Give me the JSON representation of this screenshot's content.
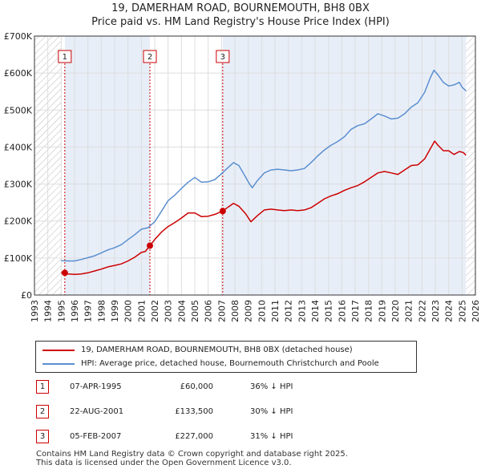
{
  "title": {
    "line1": "19, DAMERHAM ROAD, BOURNEMOUTH, BH8 0BX",
    "line2": "Price paid vs. HM Land Registry's House Price Index (HPI)"
  },
  "colors": {
    "price_line": "#cc0000",
    "hpi_line": "#5b8fd0",
    "grid": "#dddddd",
    "hatch": "#bbbbbb",
    "shade": "#e8eef8"
  },
  "chart_data": {
    "type": "line",
    "xlim": [
      1993,
      2026
    ],
    "ylim": [
      0,
      700000
    ],
    "y_ticks": [
      {
        "value": 0,
        "label": "£0"
      },
      {
        "value": 100000,
        "label": "£100K"
      },
      {
        "value": 200000,
        "label": "£200K"
      },
      {
        "value": 300000,
        "label": "£300K"
      },
      {
        "value": 400000,
        "label": "£400K"
      },
      {
        "value": 500000,
        "label": "£500K"
      },
      {
        "value": 600000,
        "label": "£600K"
      },
      {
        "value": 700000,
        "label": "£700K"
      }
    ],
    "x_ticks": [
      "1993",
      "1994",
      "1995",
      "1996",
      "1997",
      "1998",
      "1999",
      "2000",
      "2001",
      "2002",
      "2003",
      "2004",
      "2005",
      "2006",
      "2007",
      "2008",
      "2009",
      "2010",
      "2011",
      "2012",
      "2013",
      "2014",
      "2015",
      "2016",
      "2017",
      "2018",
      "2019",
      "2020",
      "2021",
      "2022",
      "2023",
      "2024",
      "2025",
      "2026"
    ],
    "data_range": [
      1995.0,
      2025.3
    ],
    "series": [
      {
        "name": "19, DAMERHAM ROAD, BOURNEMOUTH, BH8 0BX (detached house)",
        "color": "#cc0000",
        "points": [
          [
            1995.0,
            60000
          ],
          [
            1995.27,
            60000
          ],
          [
            1995.5,
            57000
          ],
          [
            1996.0,
            56000
          ],
          [
            1996.5,
            57000
          ],
          [
            1997.0,
            60000
          ],
          [
            1997.5,
            65000
          ],
          [
            1998.0,
            70000
          ],
          [
            1998.5,
            76000
          ],
          [
            1999.0,
            80000
          ],
          [
            1999.5,
            84000
          ],
          [
            2000.0,
            92000
          ],
          [
            2000.5,
            102000
          ],
          [
            2001.0,
            115000
          ],
          [
            2001.3,
            118000
          ],
          [
            2001.64,
            133500
          ],
          [
            2002.0,
            150000
          ],
          [
            2002.5,
            170000
          ],
          [
            2003.0,
            185000
          ],
          [
            2003.5,
            196000
          ],
          [
            2004.0,
            208000
          ],
          [
            2004.5,
            222000
          ],
          [
            2005.0,
            222000
          ],
          [
            2005.5,
            212000
          ],
          [
            2006.0,
            213000
          ],
          [
            2006.5,
            218000
          ],
          [
            2007.09,
            227000
          ],
          [
            2007.5,
            238000
          ],
          [
            2007.9,
            248000
          ],
          [
            2008.3,
            240000
          ],
          [
            2008.8,
            220000
          ],
          [
            2009.2,
            198000
          ],
          [
            2009.7,
            215000
          ],
          [
            2010.2,
            230000
          ],
          [
            2010.7,
            232000
          ],
          [
            2011.2,
            230000
          ],
          [
            2011.7,
            228000
          ],
          [
            2012.2,
            230000
          ],
          [
            2012.7,
            228000
          ],
          [
            2013.2,
            230000
          ],
          [
            2013.7,
            236000
          ],
          [
            2014.2,
            248000
          ],
          [
            2014.7,
            260000
          ],
          [
            2015.2,
            268000
          ],
          [
            2015.7,
            274000
          ],
          [
            2016.2,
            283000
          ],
          [
            2016.7,
            290000
          ],
          [
            2017.2,
            296000
          ],
          [
            2017.7,
            306000
          ],
          [
            2018.2,
            318000
          ],
          [
            2018.7,
            330000
          ],
          [
            2019.2,
            334000
          ],
          [
            2019.7,
            330000
          ],
          [
            2020.2,
            326000
          ],
          [
            2020.7,
            338000
          ],
          [
            2021.2,
            350000
          ],
          [
            2021.7,
            352000
          ],
          [
            2022.2,
            368000
          ],
          [
            2022.7,
            400000
          ],
          [
            2022.95,
            416000
          ],
          [
            2023.2,
            405000
          ],
          [
            2023.6,
            390000
          ],
          [
            2024.0,
            390000
          ],
          [
            2024.4,
            380000
          ],
          [
            2024.8,
            388000
          ],
          [
            2025.1,
            385000
          ],
          [
            2025.3,
            378000
          ]
        ]
      },
      {
        "name": "HPI: Average price, detached house, Bournemouth Christchurch and Poole",
        "color": "#5b8fd0",
        "points": [
          [
            1995.0,
            93000
          ],
          [
            1995.5,
            92000
          ],
          [
            1996.0,
            92000
          ],
          [
            1996.5,
            96000
          ],
          [
            1997.0,
            101000
          ],
          [
            1997.5,
            106000
          ],
          [
            1998.0,
            114000
          ],
          [
            1998.5,
            122000
          ],
          [
            1999.0,
            128000
          ],
          [
            1999.5,
            136000
          ],
          [
            2000.0,
            150000
          ],
          [
            2000.5,
            163000
          ],
          [
            2001.0,
            178000
          ],
          [
            2001.5,
            182000
          ],
          [
            2002.0,
            198000
          ],
          [
            2002.5,
            226000
          ],
          [
            2003.0,
            255000
          ],
          [
            2003.5,
            270000
          ],
          [
            2004.0,
            288000
          ],
          [
            2004.5,
            305000
          ],
          [
            2005.0,
            318000
          ],
          [
            2005.5,
            305000
          ],
          [
            2006.0,
            306000
          ],
          [
            2006.5,
            312000
          ],
          [
            2007.0,
            328000
          ],
          [
            2007.5,
            345000
          ],
          [
            2007.9,
            358000
          ],
          [
            2008.3,
            350000
          ],
          [
            2008.7,
            325000
          ],
          [
            2009.1,
            300000
          ],
          [
            2009.3,
            290000
          ],
          [
            2009.7,
            310000
          ],
          [
            2010.2,
            330000
          ],
          [
            2010.7,
            338000
          ],
          [
            2011.2,
            340000
          ],
          [
            2011.7,
            338000
          ],
          [
            2012.2,
            336000
          ],
          [
            2012.7,
            338000
          ],
          [
            2013.2,
            342000
          ],
          [
            2013.7,
            358000
          ],
          [
            2014.2,
            376000
          ],
          [
            2014.7,
            392000
          ],
          [
            2015.2,
            405000
          ],
          [
            2015.7,
            415000
          ],
          [
            2016.2,
            428000
          ],
          [
            2016.7,
            448000
          ],
          [
            2017.2,
            458000
          ],
          [
            2017.7,
            463000
          ],
          [
            2018.2,
            476000
          ],
          [
            2018.7,
            490000
          ],
          [
            2019.2,
            484000
          ],
          [
            2019.7,
            476000
          ],
          [
            2020.2,
            478000
          ],
          [
            2020.7,
            490000
          ],
          [
            2021.2,
            508000
          ],
          [
            2021.7,
            520000
          ],
          [
            2022.2,
            548000
          ],
          [
            2022.6,
            585000
          ],
          [
            2022.9,
            608000
          ],
          [
            2023.2,
            595000
          ],
          [
            2023.6,
            575000
          ],
          [
            2024.0,
            565000
          ],
          [
            2024.4,
            568000
          ],
          [
            2024.8,
            575000
          ],
          [
            2025.0,
            562000
          ],
          [
            2025.3,
            552000
          ]
        ]
      }
    ],
    "sales": [
      {
        "id": "1",
        "x": 1995.27,
        "price": 60000
      },
      {
        "id": "2",
        "x": 2001.64,
        "price": 133500
      },
      {
        "id": "3",
        "x": 2007.09,
        "price": 227000
      }
    ]
  },
  "legend": [
    {
      "label": "19, DAMERHAM ROAD, BOURNEMOUTH, BH8 0BX (detached house)",
      "color": "#cc0000"
    },
    {
      "label": "HPI: Average price, detached house, Bournemouth Christchurch and Poole",
      "color": "#5b8fd0"
    }
  ],
  "transactions": [
    {
      "num": "1",
      "date": "07-APR-1995",
      "price": "£60,000",
      "hpi": "36% ↓ HPI"
    },
    {
      "num": "2",
      "date": "22-AUG-2001",
      "price": "£133,500",
      "hpi": "30% ↓ HPI"
    },
    {
      "num": "3",
      "date": "05-FEB-2007",
      "price": "£227,000",
      "hpi": "31% ↓ HPI"
    }
  ],
  "footer": {
    "line1": "Contains HM Land Registry data © Crown copyright and database right 2025.",
    "line2": "This data is licensed under the Open Government Licence v3.0."
  }
}
